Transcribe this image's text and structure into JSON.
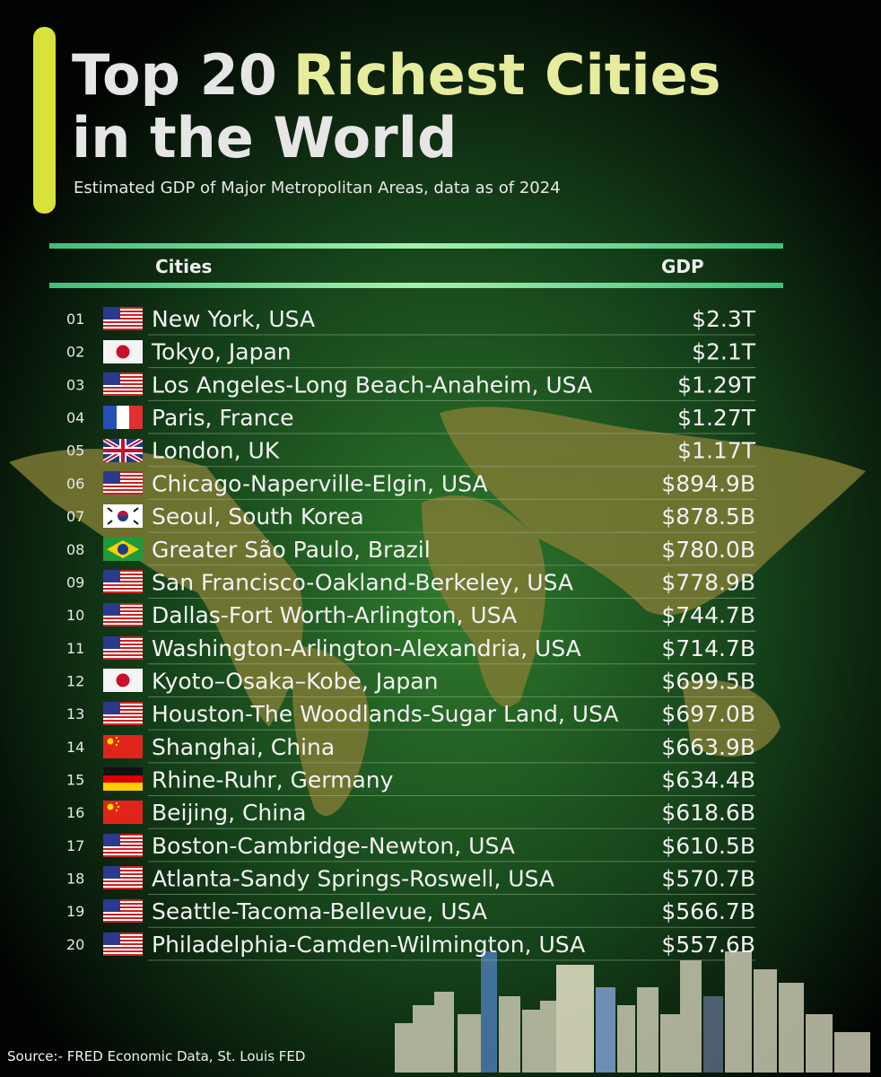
{
  "header": {
    "title": [
      "Top 20",
      "Richest Cities",
      "in the World"
    ],
    "subtitle": "Estimated GDP of Major Metropolitan Areas, data as of 2024"
  },
  "table": {
    "columns": [
      "Cities",
      "GDP"
    ],
    "rows": [
      [
        "01",
        "New York, USA",
        "$2.3T"
      ],
      [
        "02",
        "Tokyo, Japan",
        "$2.1T"
      ],
      [
        "03",
        "Los Angeles-Long Beach-Anaheim, USA",
        "$1.29T"
      ],
      [
        "04",
        "Paris, France",
        "$1.27T"
      ],
      [
        "05",
        "London, UK",
        "$1.17T"
      ],
      [
        "06",
        "Chicago-Naperville-Elgin, USA",
        "$894.9B"
      ],
      [
        "07",
        "Seoul, South Korea",
        "$878.5B"
      ],
      [
        "08",
        "Greater São Paulo, Brazil",
        "$780.0B"
      ],
      [
        "09",
        "San Francisco-Oakland-Berkeley, USA",
        "$778.9B"
      ],
      [
        "10",
        "Dallas-Fort Worth-Arlington, USA",
        "$744.7B"
      ],
      [
        "11",
        "Washington-Arlington-Alexandria, USA",
        "$714.7B"
      ],
      [
        "12",
        "Kyoto–Osaka–Kobe, Japan",
        "$699.5B"
      ],
      [
        "13",
        "Houston-The Woodlands-Sugar Land, USA",
        "$697.0B"
      ],
      [
        "14",
        "Shanghai, China",
        "$663.9B"
      ],
      [
        "15",
        "Rhine-Ruhr, Germany",
        "$634.4B"
      ],
      [
        "16",
        "Beijing, China",
        "$618.6B"
      ],
      [
        "17",
        "Boston-Cambridge-Newton, USA",
        "$610.5B"
      ],
      [
        "18",
        "Atlanta-Sandy Springs-Roswell, USA",
        "$570.7B"
      ],
      [
        "19",
        "Seattle-Tacoma-Bellevue, USA",
        "$566.7B"
      ],
      [
        "20",
        "Philadelphia-Camden-Wilmington, USA",
        "$557.6B"
      ]
    ]
  },
  "footer": {
    "source": "Source:- FRED Economic Data, St. Louis FED"
  }
}
